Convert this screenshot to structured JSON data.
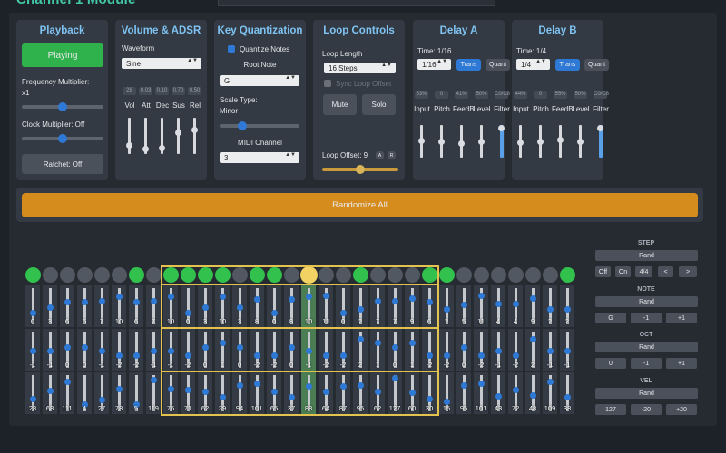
{
  "title": "Channel 1 Module",
  "playback": {
    "title": "Playback",
    "play_label": "Playing",
    "freq_label": "Frequency Multiplier:",
    "freq_value": "x1",
    "clock_label": "Clock Multiplier: Off",
    "ratchet_label": "Ratchet: Off",
    "freq_level": 0.5,
    "clock_level": 0.5
  },
  "volume": {
    "title": "Volume & ADSR",
    "waveform_label": "Waveform",
    "waveform": "Sine",
    "sliders": [
      {
        "label": "Vol",
        "value": "28",
        "level": 0.18
      },
      {
        "label": "Att",
        "value": "0.03",
        "level": 0.05
      },
      {
        "label": "Dec",
        "value": "0.10",
        "level": 0.1
      },
      {
        "label": "Sus",
        "value": "0.70",
        "level": 0.6
      },
      {
        "label": "Rel",
        "value": "0.50",
        "level": 0.7
      }
    ]
  },
  "key": {
    "title": "Key Quantization",
    "quantize_label": "Quantize Notes",
    "root_label": "Root Note",
    "root_value": "G",
    "scale_label": "Scale Type:",
    "scale_value": "Minor",
    "midi_label": "MIDI Channel",
    "midi_value": "3",
    "scale_level": 0.25
  },
  "loop": {
    "title": "Loop Controls",
    "length_label": "Loop Length",
    "length_value": "16 Steps",
    "sync_label": "Sync Loop Offset",
    "mute_label": "Mute",
    "solo_label": "Solo",
    "offset_label": "Loop Offset: 9",
    "a_label": "A",
    "r_label": "R",
    "offset_level": 0.5
  },
  "delayA": {
    "title": "Delay A",
    "time_label": "Time: 1/16",
    "time_value": "1/16",
    "trans_label": "Trans",
    "quant_label": "Quant",
    "sliders": [
      {
        "label": "Input",
        "value": "53%",
        "level": 0.53
      },
      {
        "label": "Pitch",
        "value": "0",
        "level": 0.5
      },
      {
        "label": "FeedB",
        "value": "41%",
        "level": 0.41
      },
      {
        "label": "Level",
        "value": "50%",
        "level": 0.5
      },
      {
        "label": "Filter",
        "value": "C0/C8",
        "level": 1.0,
        "blue": true
      }
    ]
  },
  "delayB": {
    "title": "Delay B",
    "time_label": "Time: 1/4",
    "time_value": "1/4",
    "trans_label": "Trans",
    "quant_label": "Quant",
    "sliders": [
      {
        "label": "Input",
        "value": "44%",
        "level": 0.44
      },
      {
        "label": "Pitch",
        "value": "0",
        "level": 0.5
      },
      {
        "label": "FeedB",
        "value": "55%",
        "level": 0.55
      },
      {
        "label": "Level",
        "value": "50%",
        "level": 0.5
      },
      {
        "label": "Filter",
        "value": "C0/C8",
        "level": 1.0,
        "blue": true
      }
    ]
  },
  "randomize_label": "Randomize All",
  "colors": {
    "accent": "#2f79d6",
    "play_green": "#2fb24b",
    "randomize": "#d58c1c",
    "window_border": "#e3c24f",
    "step_on": "#31c14c",
    "playhead": "#f1d262"
  },
  "sequencer": {
    "steps_on": [
      1,
      0,
      0,
      0,
      0,
      0,
      1,
      0,
      1,
      1,
      1,
      1,
      0,
      1,
      1,
      0,
      0,
      0,
      0,
      1,
      0,
      0,
      0,
      1,
      1,
      0,
      0,
      0,
      0,
      0,
      0,
      1
    ],
    "playhead": 16,
    "highlight": 16,
    "window_start": 8,
    "window_length": 16,
    "notes": [
      "0",
      "3",
      "6",
      "6",
      "7",
      "10",
      "6",
      "7",
      "10",
      "0",
      "3",
      "10",
      "3",
      "8",
      "0",
      "8",
      "10",
      "11",
      "0",
      "2",
      "7",
      "7",
      "9",
      "6",
      "2",
      "5",
      "11",
      "4",
      "4",
      "9",
      "2",
      "2"
    ],
    "note_levels": [
      0.8,
      0.6,
      0.4,
      0.4,
      0.35,
      0.2,
      0.4,
      0.35,
      0.2,
      0.8,
      0.6,
      0.2,
      0.6,
      0.3,
      0.8,
      0.3,
      0.2,
      0.15,
      0.8,
      0.65,
      0.35,
      0.35,
      0.25,
      0.4,
      0.65,
      0.5,
      0.15,
      0.45,
      0.45,
      0.25,
      0.65,
      0.65
    ],
    "octs": [
      "-1",
      "-1",
      "0",
      "0",
      "-1",
      "-2",
      "-2",
      "-1",
      "-1",
      "-2",
      "0",
      "1",
      "0",
      "-2",
      "-2",
      "0",
      "-1",
      "-2",
      "-2",
      "2",
      "1",
      "0",
      "1",
      "-2",
      "-2",
      "0",
      "-2",
      "-1",
      "-2",
      "2",
      "-1",
      "-1"
    ],
    "oct_levels": [
      0.6,
      0.6,
      0.45,
      0.45,
      0.6,
      0.75,
      0.75,
      0.6,
      0.6,
      0.75,
      0.45,
      0.3,
      0.45,
      0.75,
      0.75,
      0.45,
      0.6,
      0.75,
      0.75,
      0.15,
      0.3,
      0.45,
      0.3,
      0.75,
      0.75,
      0.45,
      0.75,
      0.6,
      0.75,
      0.15,
      0.6,
      0.6
    ],
    "vels": [
      "28",
      "68",
      "111",
      "4",
      "27",
      "78",
      "5",
      "119",
      "76",
      "71",
      "62",
      "39",
      "94",
      "101",
      "65",
      "37",
      "88",
      "64",
      "87",
      "95",
      "62",
      "127",
      "60",
      "30",
      "15",
      "95",
      "101",
      "43",
      "72",
      "48",
      "109",
      "38"
    ],
    "vel_levels": [
      0.78,
      0.45,
      0.12,
      0.97,
      0.79,
      0.39,
      0.96,
      0.06,
      0.4,
      0.44,
      0.51,
      0.7,
      0.26,
      0.2,
      0.49,
      0.71,
      0.31,
      0.5,
      0.31,
      0.25,
      0.51,
      0.0,
      0.53,
      0.76,
      0.88,
      0.25,
      0.2,
      0.66,
      0.43,
      0.62,
      0.14,
      0.7
    ]
  },
  "right": {
    "step_header": "STEP",
    "step_rand": "Rand",
    "step_btns": [
      "Off",
      "On",
      "4/4",
      "<",
      ">"
    ],
    "note_header": "NOTE",
    "note_rand": "Rand",
    "note_btns": [
      "G",
      "-1",
      "+1"
    ],
    "oct_header": "OCT",
    "oct_rand": "Rand",
    "oct_btns": [
      "0",
      "-1",
      "+1"
    ],
    "vel_header": "VEL",
    "vel_rand": "Rand",
    "vel_btns": [
      "127",
      "-20",
      "+20"
    ]
  }
}
